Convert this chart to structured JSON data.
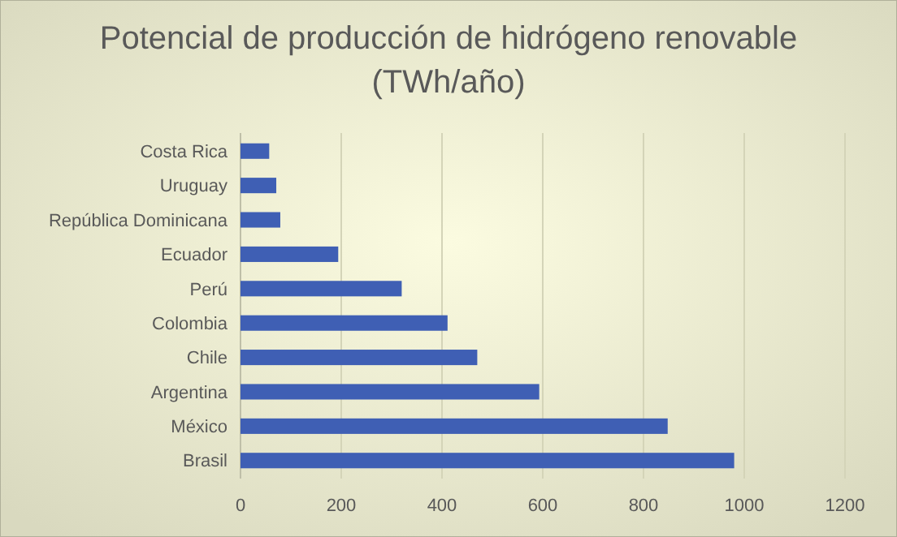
{
  "chart_data": {
    "type": "bar",
    "orientation": "horizontal",
    "title": "Potencial de producción de hidrógeno renovable\n(TWh/año)",
    "categories": [
      "Costa Rica",
      "Uruguay",
      "República Dominicana",
      "Ecuador",
      "Perú",
      "Colombia",
      "Chile",
      "Argentina",
      "México",
      "Brasil"
    ],
    "values": [
      57,
      71,
      79,
      194,
      320,
      411,
      470,
      593,
      848,
      980
    ],
    "color": "#3f5fb4",
    "xlim": [
      0,
      1200
    ],
    "xticks": [
      0,
      200,
      400,
      600,
      800,
      1000,
      1200
    ],
    "grid": "x"
  }
}
